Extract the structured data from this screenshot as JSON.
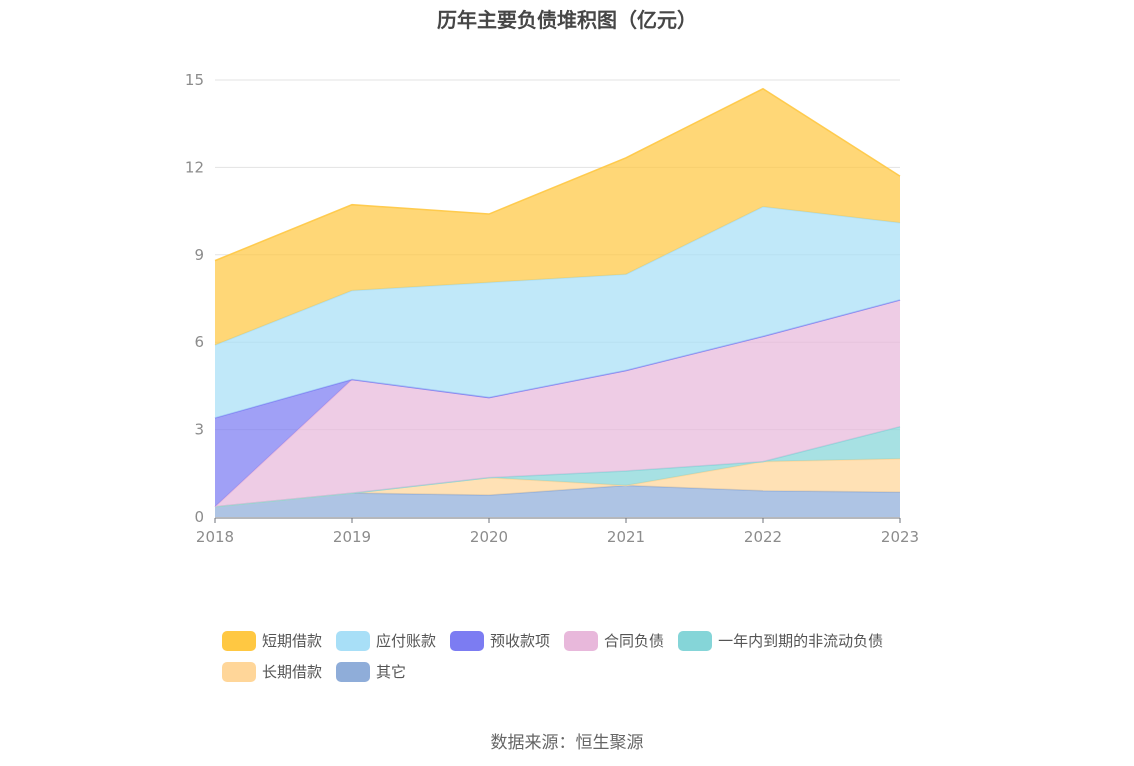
{
  "source_text": "数据来源：恒生聚源",
  "chart_data": {
    "type": "area",
    "stacked": true,
    "title": "历年主要负债堆积图（亿元）",
    "xlabel": "",
    "ylabel": "",
    "categories": [
      "2018",
      "2019",
      "2020",
      "2021",
      "2022",
      "2023"
    ],
    "ylim": [
      0,
      15
    ],
    "yticks": [
      0,
      3,
      6,
      9,
      12,
      15
    ],
    "grid": true,
    "legend_position": "bottom",
    "series": [
      {
        "name": "其它",
        "color": "#8fadd9",
        "values": [
          0.35,
          0.82,
          0.75,
          1.08,
          0.9,
          0.85
        ]
      },
      {
        "name": "长期借款",
        "color": "#ffd699",
        "values": [
          0,
          0,
          0.6,
          0,
          1.0,
          1.15
        ]
      },
      {
        "name": "一年内到期的非流动负债",
        "color": "#85d5d8",
        "values": [
          0,
          0,
          0,
          0.5,
          0,
          1.1
        ]
      },
      {
        "name": "合同负债",
        "color": "#e8b8db",
        "values": [
          0,
          3.9,
          2.75,
          3.45,
          4.3,
          4.35
        ]
      },
      {
        "name": "预收款项",
        "color": "#7c7cf2",
        "values": [
          3.05,
          0,
          0,
          0,
          0,
          0
        ]
      },
      {
        "name": "应付账款",
        "color": "#a8dff7",
        "values": [
          2.5,
          3.05,
          3.95,
          3.3,
          4.45,
          2.65
        ]
      },
      {
        "name": "短期借款",
        "color": "#ffc842",
        "values": [
          2.9,
          2.95,
          2.35,
          4.0,
          4.05,
          1.6
        ]
      }
    ],
    "legend_order": [
      [
        "短期借款",
        "应付账款",
        "预收款项",
        "合同负债",
        "一年内到期的非流动负债"
      ],
      [
        "长期借款",
        "其它"
      ]
    ]
  }
}
